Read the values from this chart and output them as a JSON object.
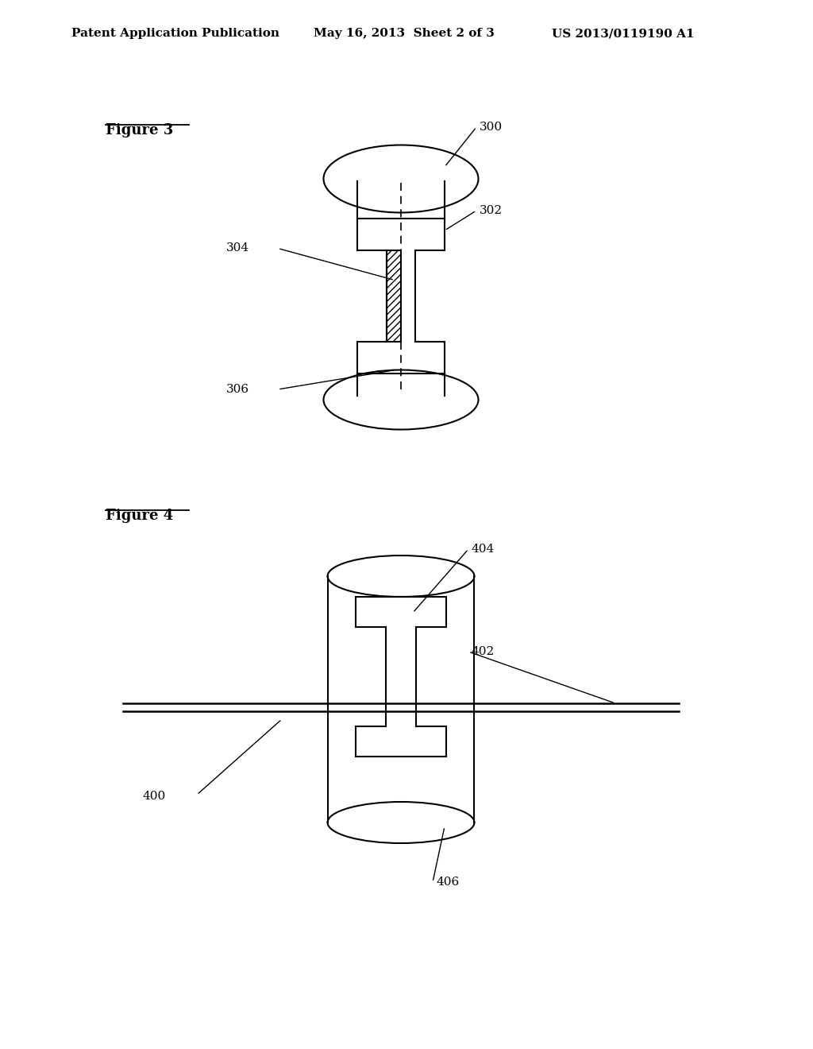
{
  "bg_color": "#ffffff",
  "line_color": "#000000",
  "header_left": "Patent Application Publication",
  "header_center": "May 16, 2013  Sheet 2 of 3",
  "header_right": "US 2013/0119190 A1",
  "fig3_label": "Figure 3",
  "fig4_label": "Figure 4",
  "fig3_labels": [
    "300",
    "302",
    "304",
    "306"
  ],
  "fig4_labels": [
    "400",
    "402",
    "404",
    "406"
  ]
}
